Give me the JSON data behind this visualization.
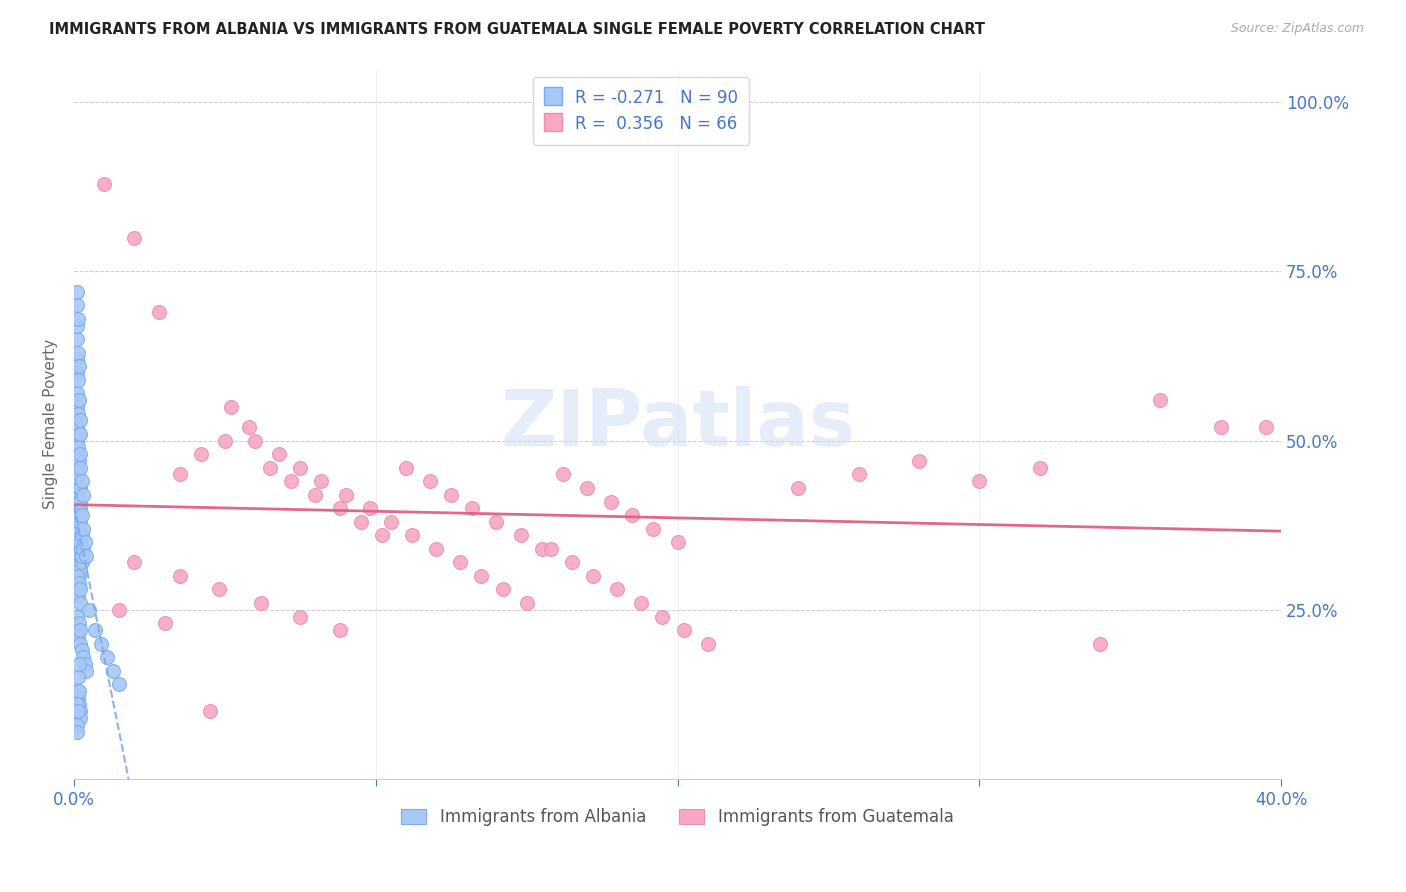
{
  "title": "IMMIGRANTS FROM ALBANIA VS IMMIGRANTS FROM GUATEMALA SINGLE FEMALE POVERTY CORRELATION CHART",
  "source": "Source: ZipAtlas.com",
  "ylabel": "Single Female Poverty",
  "r_albania": -0.271,
  "r_guatemala": 0.356,
  "n_albania": 90,
  "n_guatemala": 66,
  "color_albania": "#a8c8f8",
  "color_guatemala": "#f8a8c0",
  "color_albania_edge": "#7aabee",
  "color_guatemala_edge": "#e890b0",
  "color_albania_line": "#7aabee",
  "color_guatemala_line": "#e06080",
  "watermark_color": "#ccddf8",
  "watermark_alpha": 0.5,
  "xlim": [
    0.0,
    0.4
  ],
  "ylim": [
    0.0,
    1.05
  ],
  "xtick_positions": [
    0.0,
    0.1,
    0.2,
    0.3,
    0.4
  ],
  "xtick_labels": [
    "0.0%",
    "",
    "",
    "",
    "40.0%"
  ],
  "ytick_positions": [
    0.0,
    0.25,
    0.5,
    0.75,
    1.0
  ],
  "ytick_labels_right": [
    "",
    "25.0%",
    "50.0%",
    "75.0%",
    "100.0%"
  ],
  "background_color": "#ffffff",
  "title_color": "#222222",
  "axis_color": "#4477cc",
  "grid_color": "#cccccc",
  "legend_label_albania": "R = -0.271   N = 90",
  "legend_label_guatemala": "R =  0.356   N = 66",
  "bottom_legend_albania": "Immigrants from Albania",
  "bottom_legend_guatemala": "Immigrants from Guatemala",
  "scatter_size": 100,
  "albania_x": [
    0.0008,
    0.0012,
    0.0015,
    0.0018,
    0.002,
    0.0022,
    0.0025,
    0.0008,
    0.001,
    0.0012,
    0.0015,
    0.0018,
    0.002,
    0.0008,
    0.001,
    0.0012,
    0.0015,
    0.0018,
    0.002,
    0.0025,
    0.0008,
    0.001,
    0.0012,
    0.0015,
    0.0018,
    0.002,
    0.0025,
    0.003,
    0.0008,
    0.001,
    0.0012,
    0.0015,
    0.0018,
    0.002,
    0.0025,
    0.003,
    0.0035,
    0.004,
    0.0008,
    0.001,
    0.0012,
    0.0015,
    0.0018,
    0.002,
    0.0025,
    0.003,
    0.0035,
    0.004,
    0.0008,
    0.001,
    0.0012,
    0.0015,
    0.0018,
    0.002,
    0.0025,
    0.003,
    0.0008,
    0.001,
    0.0012,
    0.0015,
    0.0018,
    0.002,
    0.0008,
    0.001,
    0.0012,
    0.0008,
    0.001,
    0.0012,
    0.0015,
    0.0008,
    0.001,
    0.0012,
    0.005,
    0.007,
    0.009,
    0.011,
    0.013,
    0.015,
    0.001,
    0.0012,
    0.0015,
    0.0018,
    0.002,
    0.0008,
    0.001,
    0.0012,
    0.0015,
    0.001,
    0.0012,
    0.0015
  ],
  "albania_y": [
    0.32,
    0.35,
    0.3,
    0.33,
    0.31,
    0.34,
    0.32,
    0.28,
    0.3,
    0.27,
    0.29,
    0.26,
    0.28,
    0.38,
    0.36,
    0.4,
    0.37,
    0.39,
    0.35,
    0.33,
    0.42,
    0.44,
    0.41,
    0.43,
    0.4,
    0.38,
    0.36,
    0.34,
    0.46,
    0.48,
    0.45,
    0.47,
    0.43,
    0.41,
    0.39,
    0.37,
    0.35,
    0.33,
    0.22,
    0.24,
    0.21,
    0.23,
    0.2,
    0.22,
    0.19,
    0.18,
    0.17,
    0.16,
    0.5,
    0.52,
    0.49,
    0.51,
    0.48,
    0.46,
    0.44,
    0.42,
    0.55,
    0.57,
    0.54,
    0.56,
    0.53,
    0.51,
    0.6,
    0.62,
    0.59,
    0.65,
    0.67,
    0.63,
    0.61,
    0.7,
    0.72,
    0.68,
    0.25,
    0.22,
    0.2,
    0.18,
    0.16,
    0.14,
    0.13,
    0.12,
    0.11,
    0.1,
    0.09,
    0.08,
    0.07,
    0.15,
    0.13,
    0.11,
    0.1,
    0.17,
    0.16,
    0.15
  ],
  "guatemala_x": [
    0.01,
    0.02,
    0.028,
    0.035,
    0.042,
    0.05,
    0.058,
    0.065,
    0.072,
    0.08,
    0.088,
    0.095,
    0.102,
    0.11,
    0.118,
    0.125,
    0.132,
    0.14,
    0.148,
    0.155,
    0.162,
    0.17,
    0.178,
    0.185,
    0.192,
    0.2,
    0.052,
    0.06,
    0.068,
    0.075,
    0.082,
    0.09,
    0.098,
    0.105,
    0.112,
    0.12,
    0.128,
    0.135,
    0.142,
    0.15,
    0.158,
    0.165,
    0.172,
    0.18,
    0.188,
    0.195,
    0.202,
    0.21,
    0.02,
    0.035,
    0.048,
    0.062,
    0.075,
    0.088,
    0.24,
    0.26,
    0.28,
    0.3,
    0.32,
    0.34,
    0.36,
    0.38,
    0.395,
    0.015,
    0.03,
    0.045
  ],
  "guatemala_y": [
    0.88,
    0.8,
    0.69,
    0.45,
    0.48,
    0.5,
    0.52,
    0.46,
    0.44,
    0.42,
    0.4,
    0.38,
    0.36,
    0.46,
    0.44,
    0.42,
    0.4,
    0.38,
    0.36,
    0.34,
    0.45,
    0.43,
    0.41,
    0.39,
    0.37,
    0.35,
    0.55,
    0.5,
    0.48,
    0.46,
    0.44,
    0.42,
    0.4,
    0.38,
    0.36,
    0.34,
    0.32,
    0.3,
    0.28,
    0.26,
    0.34,
    0.32,
    0.3,
    0.28,
    0.26,
    0.24,
    0.22,
    0.2,
    0.32,
    0.3,
    0.28,
    0.26,
    0.24,
    0.22,
    0.43,
    0.45,
    0.47,
    0.44,
    0.46,
    0.2,
    0.56,
    0.52,
    0.52,
    0.25,
    0.23,
    0.1
  ]
}
